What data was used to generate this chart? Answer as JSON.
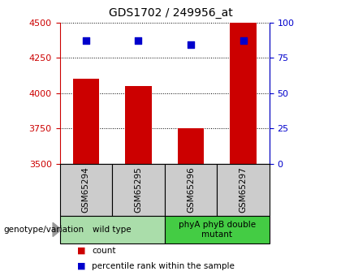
{
  "title": "GDS1702 / 249956_at",
  "samples": [
    "GSM65294",
    "GSM65295",
    "GSM65296",
    "GSM65297"
  ],
  "counts": [
    4100,
    4050,
    3750,
    4500
  ],
  "percentile_ranks": [
    87,
    87,
    84,
    87
  ],
  "ylim_left": [
    3500,
    4500
  ],
  "ylim_right": [
    0,
    100
  ],
  "yticks_left": [
    3500,
    3750,
    4000,
    4250,
    4500
  ],
  "yticks_right": [
    0,
    25,
    50,
    75,
    100
  ],
  "bar_color": "#cc0000",
  "scatter_color": "#0000cc",
  "groups": [
    {
      "label": "wild type",
      "samples": [
        0,
        1
      ],
      "color": "#aaddaa"
    },
    {
      "label": "phyA phyB double\nmutant",
      "samples": [
        2,
        3
      ],
      "color": "#44cc44"
    }
  ],
  "legend_items": [
    {
      "label": "count",
      "color": "#cc0000"
    },
    {
      "label": "percentile rank within the sample",
      "color": "#0000cc"
    }
  ],
  "genotype_label": "genotype/variation",
  "sample_box_color": "#cccccc",
  "title_fontsize": 10,
  "tick_fontsize": 8,
  "bar_width": 0.5
}
